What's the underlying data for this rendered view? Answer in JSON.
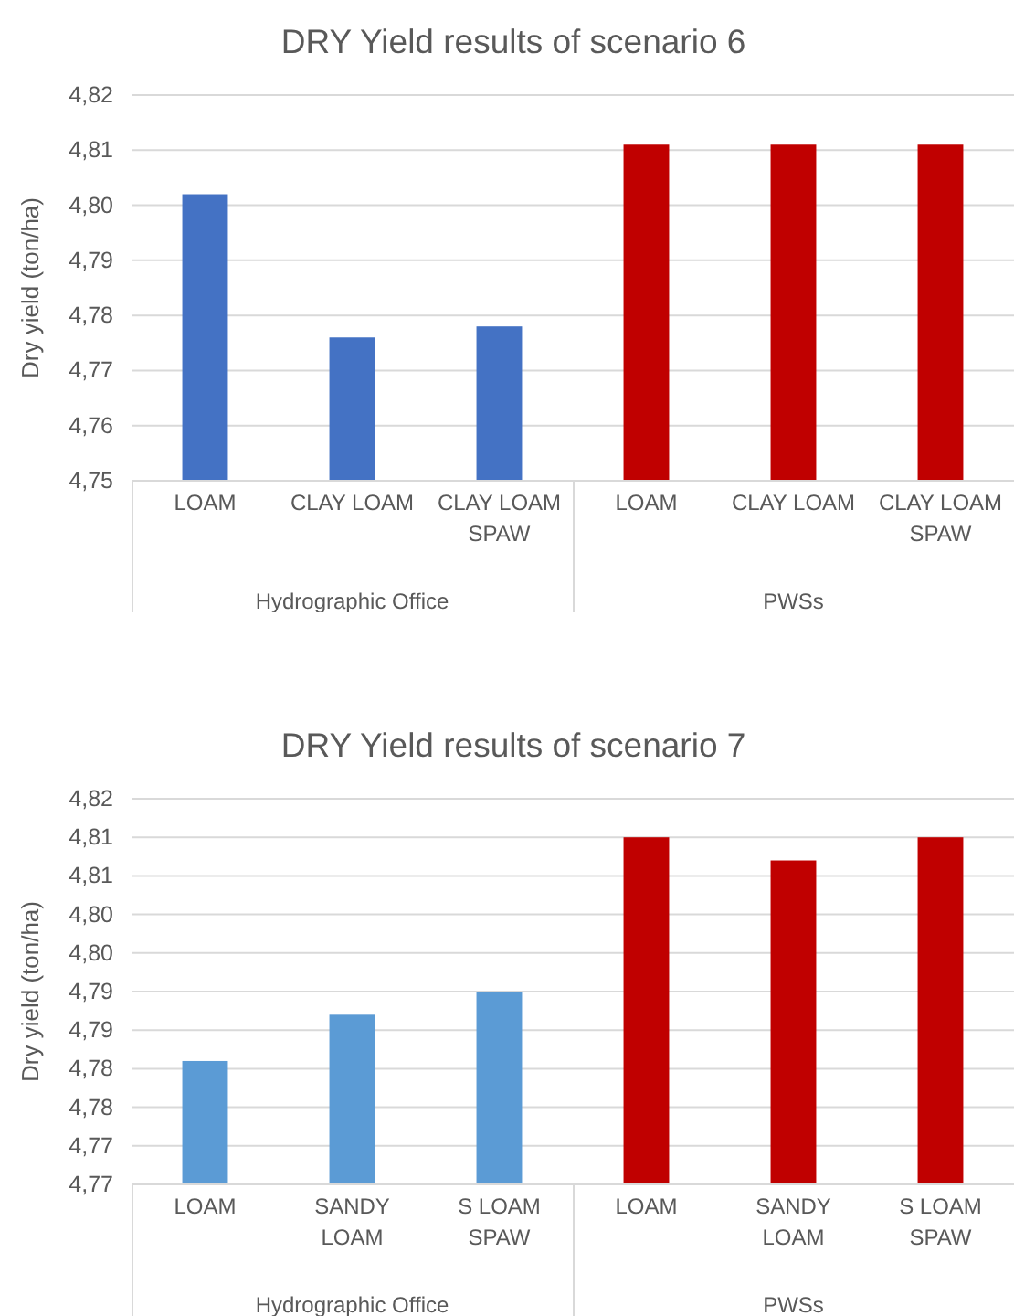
{
  "chart_data": [
    {
      "type": "bar",
      "title": "DRY Yield results of scenario 6",
      "ylabel": "Dry yield (ton/ha)",
      "categories": [
        "LOAM",
        "CLAY LOAM",
        "CLAY LOAM SPAW",
        "LOAM",
        "CLAY LOAM",
        "CLAY LOAM SPAW"
      ],
      "values": [
        4.802,
        4.776,
        4.778,
        4.811,
        4.811,
        4.811
      ],
      "colors": [
        "#4472c4",
        "#4472c4",
        "#4472c4",
        "#c00000",
        "#c00000",
        "#c00000"
      ],
      "annotations": [
        "Hydrographic Office",
        "PWSs"
      ],
      "ylim": [
        4.75,
        4.82
      ],
      "yticks": [
        {
          "value": 4.75,
          "label": "4,75"
        },
        {
          "value": 4.76,
          "label": "4,76"
        },
        {
          "value": 4.77,
          "label": "4,77"
        },
        {
          "value": 4.78,
          "label": "4,78"
        },
        {
          "value": 4.79,
          "label": "4,79"
        },
        {
          "value": 4.8,
          "label": "4,80"
        },
        {
          "value": 4.81,
          "label": "4,81"
        },
        {
          "value": 4.82,
          "label": "4,82"
        }
      ],
      "grid": "y"
    },
    {
      "type": "bar",
      "title": "DRY Yield results of scenario 7",
      "ylabel": "Dry yield (ton/ha)",
      "categories": [
        "LOAM",
        "SANDY LOAM",
        "S LOAM SPAW",
        "LOAM",
        "SANDY LOAM",
        "S LOAM SPAW"
      ],
      "values": [
        4.781,
        4.787,
        4.79,
        4.81,
        4.807,
        4.81
      ],
      "colors": [
        "#5b9bd5",
        "#5b9bd5",
        "#5b9bd5",
        "#c00000",
        "#c00000",
        "#c00000"
      ],
      "annotations": [
        "Hydrographic Office",
        "PWSs"
      ],
      "ylim": [
        4.765,
        4.815
      ],
      "yticks": [
        {
          "value": 4.765,
          "label": "4,77"
        },
        {
          "value": 4.77,
          "label": "4,77"
        },
        {
          "value": 4.775,
          "label": "4,78"
        },
        {
          "value": 4.78,
          "label": "4,78"
        },
        {
          "value": 4.785,
          "label": "4,79"
        },
        {
          "value": 4.79,
          "label": "4,79"
        },
        {
          "value": 4.795,
          "label": "4,80"
        },
        {
          "value": 4.8,
          "label": "4,80"
        },
        {
          "value": 4.805,
          "label": "4,81"
        },
        {
          "value": 4.81,
          "label": "4,81"
        },
        {
          "value": 4.815,
          "label": "4,82"
        }
      ],
      "grid": "y"
    }
  ]
}
